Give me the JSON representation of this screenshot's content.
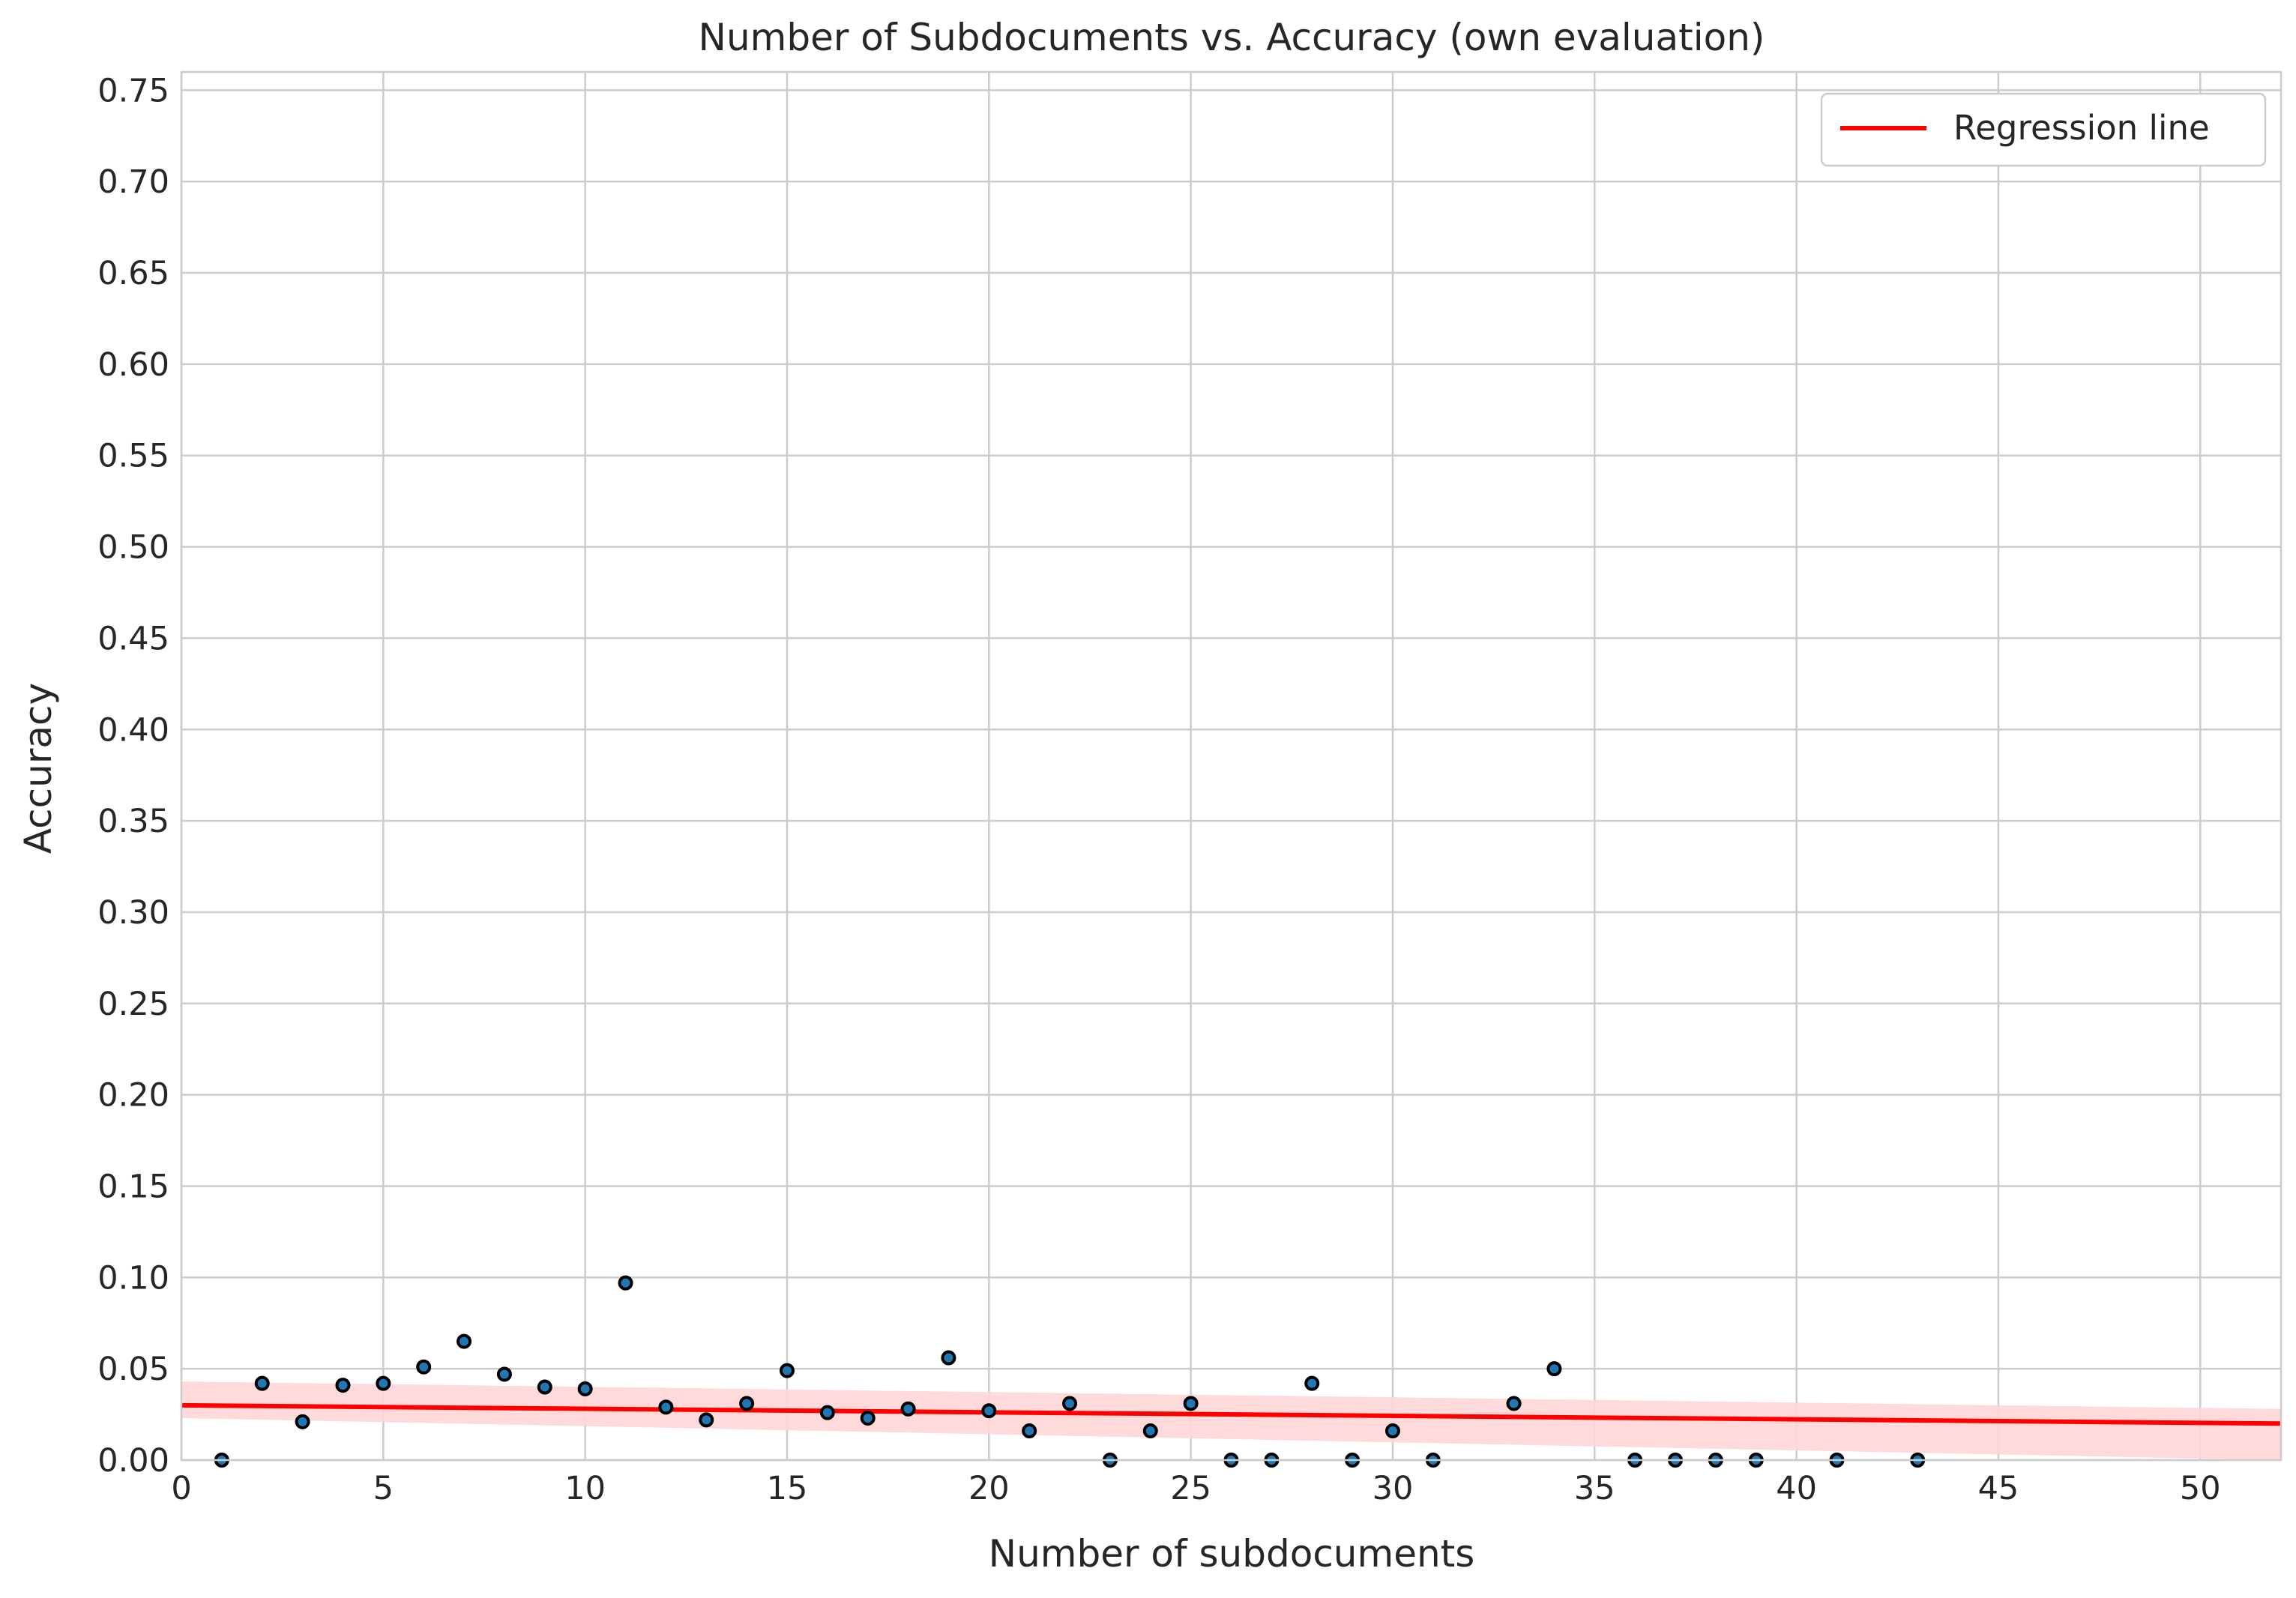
{
  "chart_data": {
    "type": "scatter",
    "title": "Number of Subdocuments vs. Accuracy (own evaluation)",
    "xlabel": "Number of subdocuments",
    "ylabel": "Accuracy",
    "xlim": [
      0,
      52
    ],
    "ylim": [
      0,
      0.76
    ],
    "x_ticks": [
      "0",
      "5",
      "10",
      "15",
      "20",
      "25",
      "30",
      "35",
      "40",
      "45",
      "50"
    ],
    "y_ticks": [
      "0.00",
      "0.05",
      "0.10",
      "0.15",
      "0.20",
      "0.25",
      "0.30",
      "0.35",
      "0.40",
      "0.45",
      "0.50",
      "0.55",
      "0.60",
      "0.65",
      "0.70",
      "0.75"
    ],
    "grid": true,
    "legend_position": "top-right",
    "points": [
      {
        "x": 1,
        "y": 0.0
      },
      {
        "x": 2,
        "y": 0.042
      },
      {
        "x": 3,
        "y": 0.021
      },
      {
        "x": 4,
        "y": 0.041
      },
      {
        "x": 5,
        "y": 0.042
      },
      {
        "x": 6,
        "y": 0.051
      },
      {
        "x": 7,
        "y": 0.065
      },
      {
        "x": 8,
        "y": 0.047
      },
      {
        "x": 9,
        "y": 0.04
      },
      {
        "x": 10,
        "y": 0.039
      },
      {
        "x": 11,
        "y": 0.097
      },
      {
        "x": 12,
        "y": 0.029
      },
      {
        "x": 13,
        "y": 0.022
      },
      {
        "x": 14,
        "y": 0.031
      },
      {
        "x": 15,
        "y": 0.049
      },
      {
        "x": 16,
        "y": 0.026
      },
      {
        "x": 17,
        "y": 0.023
      },
      {
        "x": 18,
        "y": 0.028
      },
      {
        "x": 19,
        "y": 0.056
      },
      {
        "x": 20,
        "y": 0.027
      },
      {
        "x": 21,
        "y": 0.016
      },
      {
        "x": 22,
        "y": 0.031
      },
      {
        "x": 23,
        "y": 0.0
      },
      {
        "x": 24,
        "y": 0.016
      },
      {
        "x": 25,
        "y": 0.031
      },
      {
        "x": 26,
        "y": 0.0
      },
      {
        "x": 27,
        "y": 0.0
      },
      {
        "x": 28,
        "y": 0.042
      },
      {
        "x": 29,
        "y": 0.0
      },
      {
        "x": 30,
        "y": 0.016
      },
      {
        "x": 31,
        "y": 0.0
      },
      {
        "x": 33,
        "y": 0.031
      },
      {
        "x": 34,
        "y": 0.05
      },
      {
        "x": 36,
        "y": 0.0
      },
      {
        "x": 37,
        "y": 0.0
      },
      {
        "x": 38,
        "y": 0.0
      },
      {
        "x": 39,
        "y": 0.0
      },
      {
        "x": 41,
        "y": 0.0
      },
      {
        "x": 43,
        "y": 0.0
      }
    ],
    "regression_line": {
      "name": "Regression line",
      "color": "#ff0000",
      "x": [
        0,
        52
      ],
      "y": [
        0.03,
        0.02
      ],
      "ci_upper": [
        0.043,
        0.028
      ],
      "ci_lower": [
        0.023,
        0.0
      ],
      "ci_color": "#ffd6d6"
    },
    "point_color": "#1f77b4",
    "point_edge_color": "#000000"
  }
}
